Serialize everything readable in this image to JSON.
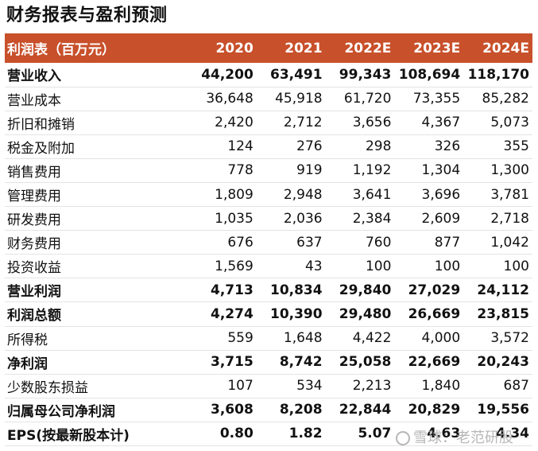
{
  "title": "财务报表与盈利预测",
  "table": {
    "header": [
      "利润表（百万元）",
      "2020",
      "2021",
      "2022E",
      "2023E",
      "2024E"
    ],
    "rows": [
      {
        "label": "营业收入",
        "values": [
          "44,200",
          "63,491",
          "99,343",
          "108,694",
          "118,170"
        ],
        "bold": true
      },
      {
        "label": "营业成本",
        "values": [
          "36,648",
          "45,918",
          "61,720",
          "73,355",
          "85,282"
        ],
        "bold": false
      },
      {
        "label": "折旧和摊销",
        "values": [
          "2,420",
          "2,712",
          "3,656",
          "4,367",
          "5,073"
        ],
        "bold": false
      },
      {
        "label": "税金及附加",
        "values": [
          "124",
          "276",
          "298",
          "326",
          "355"
        ],
        "bold": false
      },
      {
        "label": "销售费用",
        "values": [
          "778",
          "919",
          "1,192",
          "1,304",
          "1,300"
        ],
        "bold": false
      },
      {
        "label": "管理费用",
        "values": [
          "1,809",
          "2,948",
          "3,641",
          "3,696",
          "3,781"
        ],
        "bold": false
      },
      {
        "label": "研发费用",
        "values": [
          "1,035",
          "2,036",
          "2,384",
          "2,609",
          "2,718"
        ],
        "bold": false
      },
      {
        "label": "财务费用",
        "values": [
          "676",
          "637",
          "760",
          "877",
          "1,042"
        ],
        "bold": false
      },
      {
        "label": "投资收益",
        "values": [
          "1,569",
          "43",
          "100",
          "100",
          "100"
        ],
        "bold": false
      },
      {
        "label": "营业利润",
        "values": [
          "4,713",
          "10,834",
          "29,840",
          "27,029",
          "24,112"
        ],
        "bold": true
      },
      {
        "label": "利润总额",
        "values": [
          "4,274",
          "10,390",
          "29,480",
          "26,669",
          "23,815"
        ],
        "bold": true
      },
      {
        "label": "所得税",
        "values": [
          "559",
          "1,648",
          "4,422",
          "4,000",
          "3,572"
        ],
        "bold": false
      },
      {
        "label": "净利润",
        "values": [
          "3,715",
          "8,742",
          "25,058",
          "22,669",
          "20,243"
        ],
        "bold": true
      },
      {
        "label": "少数股东损益",
        "values": [
          "107",
          "534",
          "2,213",
          "1,840",
          "687"
        ],
        "bold": false
      },
      {
        "label": "归属母公司净利润",
        "values": [
          "3,608",
          "8,208",
          "22,844",
          "20,829",
          "19,556"
        ],
        "bold": true
      },
      {
        "label": "EPS(按最新股本计)",
        "values": [
          "0.80",
          "1.82",
          "5.07",
          "4.63",
          "4.34"
        ],
        "bold": true
      }
    ]
  },
  "watermark": "雪球：老范研股",
  "colors": {
    "header_bg": "#c8502b",
    "header_text": "#ffffff"
  }
}
